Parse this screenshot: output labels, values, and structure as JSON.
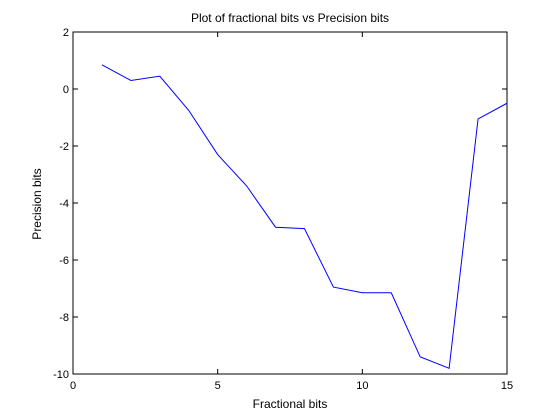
{
  "chart_data": {
    "type": "line",
    "title": "Plot of fractional bits vs Precision bits",
    "xlabel": "Fractional bits",
    "ylabel": "Precision bits",
    "xlim": [
      0,
      15
    ],
    "ylim": [
      -10,
      2
    ],
    "xticks": [
      0,
      5,
      10,
      15
    ],
    "yticks": [
      2,
      0,
      -2,
      -4,
      -6,
      -8,
      -10
    ],
    "grid": false,
    "series": [
      {
        "color": "#0000ff",
        "x": [
          1,
          2,
          3,
          4,
          5,
          6,
          7,
          8,
          9,
          10,
          11,
          12,
          13,
          14,
          15
        ],
        "y": [
          0.85,
          0.3,
          0.45,
          -0.75,
          -2.3,
          -3.4,
          -4.85,
          -4.9,
          -6.95,
          -7.15,
          -7.15,
          -9.4,
          -9.8,
          -1.05,
          -0.5
        ]
      }
    ]
  }
}
